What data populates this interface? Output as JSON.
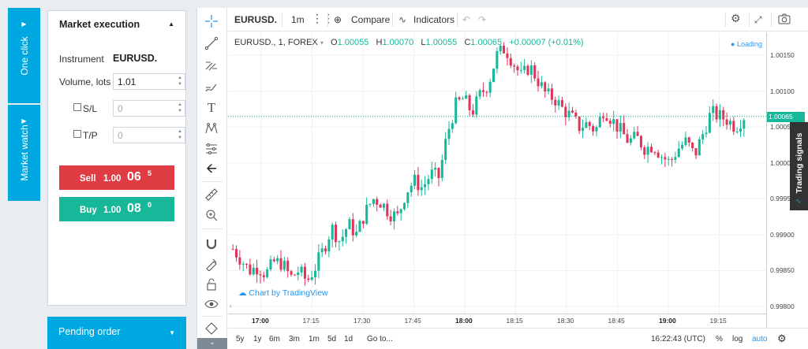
{
  "side_tabs": {
    "one_click": "One click",
    "market_watch": "Market watch"
  },
  "panel": {
    "title": "Market execution",
    "instrument_label": "Instrument",
    "instrument_value": "EURUSD.",
    "volume_label": "Volume, lots",
    "volume_value": "1.01",
    "sl_label": "S/L",
    "sl_value": "0",
    "tp_label": "T/P",
    "tp_value": "0",
    "sell": {
      "label": "Sell",
      "price_small": "1.00",
      "price_big": "06",
      "price_sup": "5"
    },
    "buy": {
      "label": "Buy",
      "price_small": "1.00",
      "price_big": "08",
      "price_sup": "0"
    },
    "pending": "Pending order"
  },
  "toolbar": {
    "symbol": "EURUSD.",
    "interval": "1m",
    "compare": "Compare",
    "indicators": "Indicators"
  },
  "legend": {
    "title": "EURUSD., 1, FOREX",
    "o_label": "O",
    "o_value": "1.00055",
    "h_label": "H",
    "h_value": "1.00070",
    "l_label": "L",
    "l_value": "1.00055",
    "c_label": "C",
    "c_value": "1.00065",
    "change": "+0.00007 (+0.01%)",
    "loading": "Loading"
  },
  "watermark": "Chart by TradingView",
  "trading_signals": "Trading signals",
  "bottom": {
    "ranges": [
      "5y",
      "1y",
      "6m",
      "3m",
      "1m",
      "5d",
      "1d"
    ],
    "goto": "Go to...",
    "clock": "16:22:43 (UTC)",
    "percent": "%",
    "log": "log",
    "auto": "auto"
  },
  "colors": {
    "up": "#17b79a",
    "down": "#e0345a",
    "accent": "#00a8e1",
    "sell": "#e03c44",
    "buy": "#17b79a"
  },
  "chart_data": {
    "type": "candlestick",
    "symbol": "EURUSD.",
    "x_ticks": [
      "17:00",
      "17:15",
      "17:30",
      "17:45",
      "18:00",
      "18:15",
      "18:30",
      "18:45",
      "19:00",
      "19:15"
    ],
    "y_ticks": [
      "1.00150",
      "1.00100",
      "1.00050",
      "1.00000",
      "0.99950",
      "0.99900",
      "0.99850",
      "0.99800"
    ],
    "current_price": "1.00065",
    "ylim": [
      0.9979,
      1.00182
    ],
    "close_path": [
      0.9988,
      0.99865,
      0.9985,
      0.99855,
      0.99845,
      0.99862,
      0.9986,
      0.9984,
      0.9985,
      0.99835,
      0.99855,
      0.9988,
      0.9991,
      0.9989,
      0.99915,
      0.999,
      0.9993,
      0.9995,
      0.99945,
      0.9993,
      0.99925,
      0.9996,
      0.99975,
      0.99965,
      0.99985,
      0.9998,
      1.0004,
      1.0008,
      1.0009,
      1.0007,
      1.00095,
      1.0011,
      1.0015,
      1.0016,
      1.0014,
      1.0012,
      1.00135,
      1.00115,
      1.00095,
      1.0009,
      1.00075,
      1.00065,
      1.0005,
      1.00055,
      1.00045,
      1.00075,
      1.0006,
      1.00045,
      1.0003,
      1.00035,
      1.0002,
      1.00025,
      1.0001,
      1.0,
      1.0002,
      1.0003,
      1.0001,
      1.0004,
      1.0007,
      1.00065,
      1.0006,
      1.0005,
      1.00065
    ]
  }
}
